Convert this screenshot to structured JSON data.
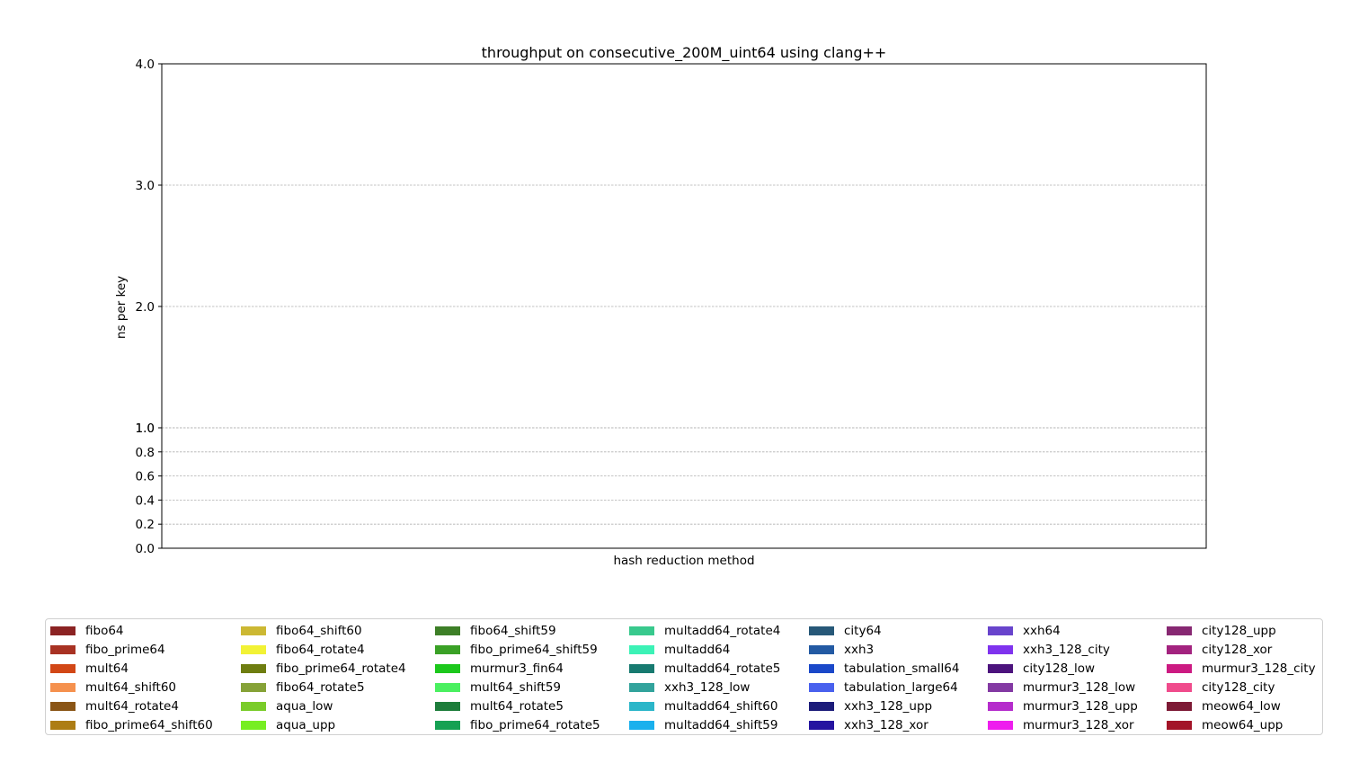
{
  "chart_data": {
    "type": "bar",
    "title": "throughput on consecutive_200M_uint64 using clang++",
    "xlabel": "hash reduction method",
    "ylabel": "ns per key",
    "y_scale": "piecewise (linear 0–1 expanded, linear 1–4)",
    "ylim": [
      0,
      4
    ],
    "yticks_lower": [
      "0.0",
      "0.2",
      "0.4",
      "0.6",
      "0.8",
      "1.0"
    ],
    "yticks_upper": [
      "1.0",
      "2.0",
      "3.0",
      "4.0"
    ],
    "ytick_values_lower": [
      0,
      0.2,
      0.4,
      0.6,
      0.8,
      1.0
    ],
    "ytick_values_upper": [
      1,
      2,
      3,
      4
    ],
    "grid": "horizontal dashed",
    "legend_placement": "bottom",
    "categories": [],
    "series": [
      {
        "name": "fibo64",
        "color": "#8b2323",
        "values": []
      },
      {
        "name": "fibo_prime64",
        "color": "#a83223",
        "values": []
      },
      {
        "name": "mult64",
        "color": "#d24716",
        "values": []
      },
      {
        "name": "mult64_shift60",
        "color": "#f5914e",
        "values": []
      },
      {
        "name": "mult64_rotate4",
        "color": "#8a5516",
        "values": []
      },
      {
        "name": "fibo_prime64_shift60",
        "color": "#ad7d14",
        "values": []
      },
      {
        "name": "fibo64_shift60",
        "color": "#ccb833",
        "values": []
      },
      {
        "name": "fibo64_rotate4",
        "color": "#f2f235",
        "values": []
      },
      {
        "name": "fibo_prime64_rotate4",
        "color": "#6e7d10",
        "values": []
      },
      {
        "name": "fibo64_rotate5",
        "color": "#86a237",
        "values": []
      },
      {
        "name": "aqua_low",
        "color": "#7acc2a",
        "values": []
      },
      {
        "name": "aqua_upp",
        "color": "#77ee22",
        "values": []
      },
      {
        "name": "fibo64_shift59",
        "color": "#3d7f27",
        "values": []
      },
      {
        "name": "fibo_prime64_shift59",
        "color": "#3aa126",
        "values": []
      },
      {
        "name": "murmur3_fin64",
        "color": "#1cc81c",
        "values": []
      },
      {
        "name": "mult64_shift59",
        "color": "#4af060",
        "values": []
      },
      {
        "name": "mult64_rotate5",
        "color": "#1d7d3b",
        "values": []
      },
      {
        "name": "fibo_prime64_rotate5",
        "color": "#16a153",
        "values": []
      },
      {
        "name": "multadd64_rotate4",
        "color": "#38c98d",
        "values": []
      },
      {
        "name": "multadd64",
        "color": "#3cf2b6",
        "values": []
      },
      {
        "name": "multadd64_rotate5",
        "color": "#177a70",
        "values": []
      },
      {
        "name": "xxh3_128_low",
        "color": "#32a39c",
        "values": []
      },
      {
        "name": "multadd64_shift60",
        "color": "#2bb6c9",
        "values": []
      },
      {
        "name": "multadd64_shift59",
        "color": "#1ab0ed",
        "values": []
      },
      {
        "name": "city64",
        "color": "#275878",
        "values": []
      },
      {
        "name": "xxh3",
        "color": "#235aa3",
        "values": []
      },
      {
        "name": "tabulation_small64",
        "color": "#1a48c9",
        "values": []
      },
      {
        "name": "tabulation_large64",
        "color": "#4961ee",
        "values": []
      },
      {
        "name": "xxh3_128_upp",
        "color": "#1c1c7a",
        "values": []
      },
      {
        "name": "xxh3_128_xor",
        "color": "#2514a0",
        "values": []
      },
      {
        "name": "xxh64",
        "color": "#6844cc",
        "values": []
      },
      {
        "name": "xxh3_128_city",
        "color": "#7f33ee",
        "values": []
      },
      {
        "name": "city128_low",
        "color": "#4c137d",
        "values": []
      },
      {
        "name": "murmur3_128_low",
        "color": "#8339a3",
        "values": []
      },
      {
        "name": "murmur3_128_upp",
        "color": "#b52ccc",
        "values": []
      },
      {
        "name": "murmur3_128_xor",
        "color": "#ee1eee",
        "values": []
      },
      {
        "name": "city128_upp",
        "color": "#872872",
        "values": []
      },
      {
        "name": "city128_xor",
        "color": "#a3237f",
        "values": []
      },
      {
        "name": "murmur3_128_city",
        "color": "#cc1a82",
        "values": []
      },
      {
        "name": "city128_city",
        "color": "#f04b8c",
        "values": []
      },
      {
        "name": "meow64_low",
        "color": "#7d1a35",
        "values": []
      },
      {
        "name": "meow64_upp",
        "color": "#a31428",
        "values": []
      }
    ]
  }
}
